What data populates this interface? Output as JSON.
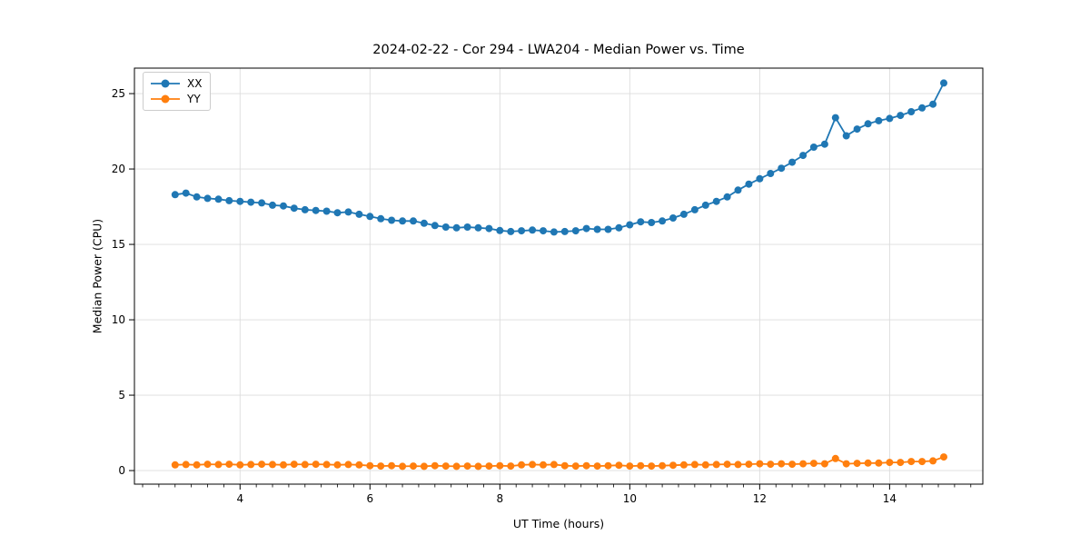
{
  "chart_data": {
    "type": "line",
    "title": "2024-02-22 - Cor 294 - LWA204 - Median Power vs. Time",
    "xlabel": "UT Time (hours)",
    "ylabel": "Median Power (CPU)",
    "xlim": [
      2.374,
      15.435
    ],
    "ylim": [
      -0.9,
      26.69
    ],
    "xticks": [
      4,
      6,
      8,
      10,
      12,
      14
    ],
    "yticks": [
      0,
      5,
      10,
      15,
      20,
      25
    ],
    "minor_xtick_step": 0.25,
    "grid": true,
    "grid_color": "#dcdcdc",
    "legend": {
      "position": "upper-left",
      "entries": [
        "XX",
        "YY"
      ]
    },
    "x": [
      3.0,
      3.167,
      3.333,
      3.5,
      3.667,
      3.833,
      4.0,
      4.167,
      4.333,
      4.5,
      4.667,
      4.833,
      5.0,
      5.167,
      5.333,
      5.5,
      5.667,
      5.833,
      6.0,
      6.167,
      6.333,
      6.5,
      6.667,
      6.833,
      7.0,
      7.167,
      7.333,
      7.5,
      7.667,
      7.833,
      8.0,
      8.167,
      8.333,
      8.5,
      8.667,
      8.833,
      9.0,
      9.167,
      9.333,
      9.5,
      9.667,
      9.833,
      10.0,
      10.167,
      10.333,
      10.5,
      10.667,
      10.833,
      11.0,
      11.167,
      11.333,
      11.5,
      11.667,
      11.833,
      12.0,
      12.167,
      12.333,
      12.5,
      12.667,
      12.833,
      13.0,
      13.167,
      13.333,
      13.5,
      13.667,
      13.833,
      14.0,
      14.167,
      14.333,
      14.5,
      14.667,
      14.833
    ],
    "series": [
      {
        "name": "XX",
        "color": "#1f77b4",
        "values": [
          18.3,
          18.4,
          18.15,
          18.05,
          18.0,
          17.9,
          17.85,
          17.8,
          17.75,
          17.6,
          17.55,
          17.4,
          17.3,
          17.25,
          17.2,
          17.1,
          17.15,
          17.0,
          16.85,
          16.7,
          16.6,
          16.55,
          16.55,
          16.4,
          16.25,
          16.15,
          16.1,
          16.15,
          16.1,
          16.05,
          15.92,
          15.85,
          15.9,
          15.95,
          15.9,
          15.82,
          15.85,
          15.9,
          16.05,
          16.0,
          16.0,
          16.1,
          16.3,
          16.5,
          16.45,
          16.55,
          16.75,
          17.0,
          17.3,
          17.6,
          17.85,
          18.15,
          18.6,
          19.0,
          19.35,
          19.7,
          20.05,
          20.45,
          20.9,
          21.45,
          21.65,
          23.4,
          22.2,
          22.65,
          23.0,
          23.2,
          23.35,
          23.55,
          23.8,
          24.05,
          24.3,
          25.7
        ]
      },
      {
        "name": "YY",
        "color": "#ff7f0e",
        "values": [
          0.38,
          0.4,
          0.38,
          0.42,
          0.4,
          0.42,
          0.38,
          0.4,
          0.42,
          0.4,
          0.38,
          0.42,
          0.4,
          0.42,
          0.4,
          0.38,
          0.4,
          0.38,
          0.32,
          0.3,
          0.32,
          0.28,
          0.3,
          0.28,
          0.32,
          0.3,
          0.28,
          0.3,
          0.28,
          0.3,
          0.32,
          0.3,
          0.38,
          0.4,
          0.38,
          0.4,
          0.32,
          0.3,
          0.32,
          0.3,
          0.32,
          0.35,
          0.3,
          0.32,
          0.3,
          0.32,
          0.35,
          0.38,
          0.4,
          0.38,
          0.4,
          0.42,
          0.4,
          0.42,
          0.45,
          0.42,
          0.45,
          0.42,
          0.45,
          0.48,
          0.45,
          0.8,
          0.45,
          0.48,
          0.5,
          0.5,
          0.54,
          0.54,
          0.6,
          0.6,
          0.64,
          0.9
        ]
      }
    ]
  }
}
